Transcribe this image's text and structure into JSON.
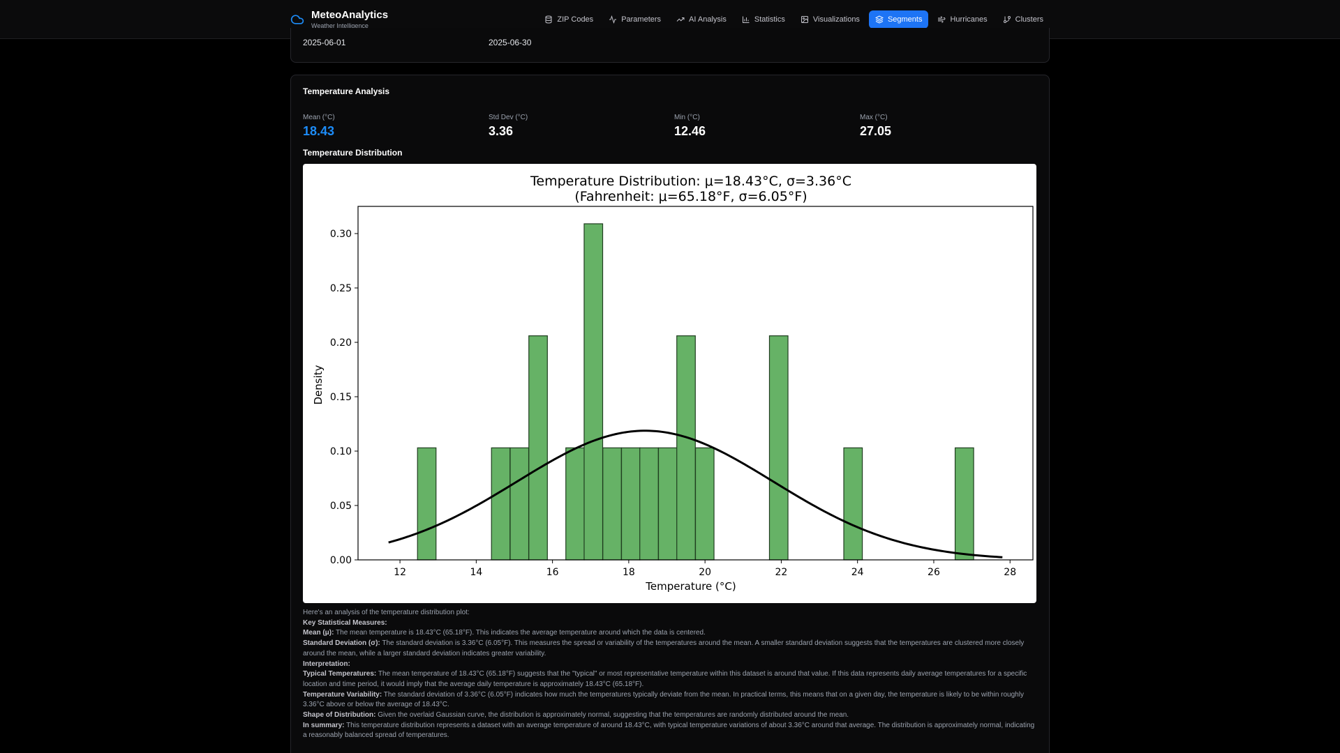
{
  "app": {
    "name": "MeteoAnalytics",
    "tagline": "Weather Intelligence",
    "accent_color": "#1d74f5",
    "logo_icon": "cloud-icon"
  },
  "nav": [
    {
      "label": "ZIP Codes",
      "icon": "database-icon",
      "active": false
    },
    {
      "label": "Parameters",
      "icon": "activity-icon",
      "active": false
    },
    {
      "label": "AI Analysis",
      "icon": "trending-up-icon",
      "active": false
    },
    {
      "label": "Statistics",
      "icon": "bar-chart-icon",
      "active": false
    },
    {
      "label": "Visualizations",
      "icon": "image-icon",
      "active": false
    },
    {
      "label": "Segments",
      "icon": "layers-icon",
      "active": true
    },
    {
      "label": "Hurricanes",
      "icon": "wind-icon",
      "active": false
    },
    {
      "label": "Clusters",
      "icon": "git-branch-icon",
      "active": false
    }
  ],
  "date_range": {
    "start": "2025-06-01",
    "end": "2025-06-30"
  },
  "temperature_analysis": {
    "title": "Temperature Analysis",
    "stats": [
      {
        "label": "Mean (°C)",
        "value": "18.43"
      },
      {
        "label": "Std Dev (°C)",
        "value": "3.36"
      },
      {
        "label": "Min (°C)",
        "value": "12.46"
      },
      {
        "label": "Max (°C)",
        "value": "27.05"
      }
    ],
    "distribution_heading": "Temperature Distribution"
  },
  "chart_data": {
    "type": "bar",
    "title": "Temperature Distribution: μ=18.43°C, σ=3.36°C",
    "subtitle": "(Fahrenheit: μ=65.18°F, σ=6.05°F)",
    "xlabel": "Temperature (°C)",
    "ylabel": "Density",
    "xlim": [
      10.9,
      28.6
    ],
    "ylim": [
      0,
      0.325
    ],
    "xticks": [
      12,
      14,
      16,
      18,
      20,
      22,
      24,
      26,
      28
    ],
    "yticks": [
      0.0,
      0.05,
      0.1,
      0.15,
      0.2,
      0.25,
      0.3
    ],
    "ytick_labels": [
      "0.00",
      "0.05",
      "0.10",
      "0.15",
      "0.20",
      "0.25",
      "0.30"
    ],
    "bin_width": 0.486,
    "bins": [
      {
        "start": 12.46,
        "density": 0.103
      },
      {
        "start": 14.4,
        "density": 0.103
      },
      {
        "start": 14.89,
        "density": 0.103
      },
      {
        "start": 15.38,
        "density": 0.206
      },
      {
        "start": 16.35,
        "density": 0.103
      },
      {
        "start": 16.83,
        "density": 0.309
      },
      {
        "start": 17.32,
        "density": 0.103
      },
      {
        "start": 17.81,
        "density": 0.103
      },
      {
        "start": 18.29,
        "density": 0.103
      },
      {
        "start": 18.78,
        "density": 0.103
      },
      {
        "start": 19.26,
        "density": 0.206
      },
      {
        "start": 19.75,
        "density": 0.103
      },
      {
        "start": 21.69,
        "density": 0.206
      },
      {
        "start": 23.64,
        "density": 0.103
      },
      {
        "start": 26.56,
        "density": 0.103
      }
    ],
    "bar_color": "#66b266",
    "bar_edge_color": "#1f3d1f",
    "curve": {
      "type": "gaussian",
      "mean": 18.43,
      "std": 3.36,
      "x_range": [
        11.7,
        27.8
      ],
      "color": "#000000"
    },
    "grid": false,
    "legend": "none"
  },
  "analysis": {
    "intro": "Here's an analysis of the temperature distribution plot:",
    "key_heading": "Key Statistical Measures:",
    "mean_label": "Mean (μ):",
    "mean_text": " The mean temperature is 18.43°C (65.18°F). This indicates the average temperature around which the data is centered.",
    "std_label": "Standard Deviation (σ):",
    "std_text": " The standard deviation is 3.36°C (6.05°F). This measures the spread or variability of the temperatures around the mean. A smaller standard deviation suggests that the temperatures are clustered more closely around the mean, while a larger standard deviation indicates greater variability.",
    "interp_heading": "Interpretation:",
    "typical_label": "Typical Temperatures:",
    "typical_text": " The mean temperature of 18.43°C (65.18°F) suggests that the \"typical\" or most representative temperature within this dataset is around that value. If this data represents daily average temperatures for a specific location and time period, it would imply that the average daily temperature is approximately 18.43°C (65.18°F).",
    "variability_label": "Temperature Variability:",
    "variability_text": " The standard deviation of 3.36°C (6.05°F) indicates how much the temperatures typically deviate from the mean. In practical terms, this means that on a given day, the temperature is likely to be within roughly 3.36°C above or below the average of 18.43°C.",
    "shape_label": "Shape of Distribution:",
    "shape_text": " Given the overlaid Gaussian curve, the distribution is approximately normal, suggesting that the temperatures are randomly distributed around the mean.",
    "summary_label": "In summary:",
    "summary_text": " This temperature distribution represents a dataset with an average temperature of around 18.43°C, with typical temperature variations of about 3.36°C around that average. The distribution is approximately normal, indicating a reasonably balanced spread of temperatures."
  }
}
